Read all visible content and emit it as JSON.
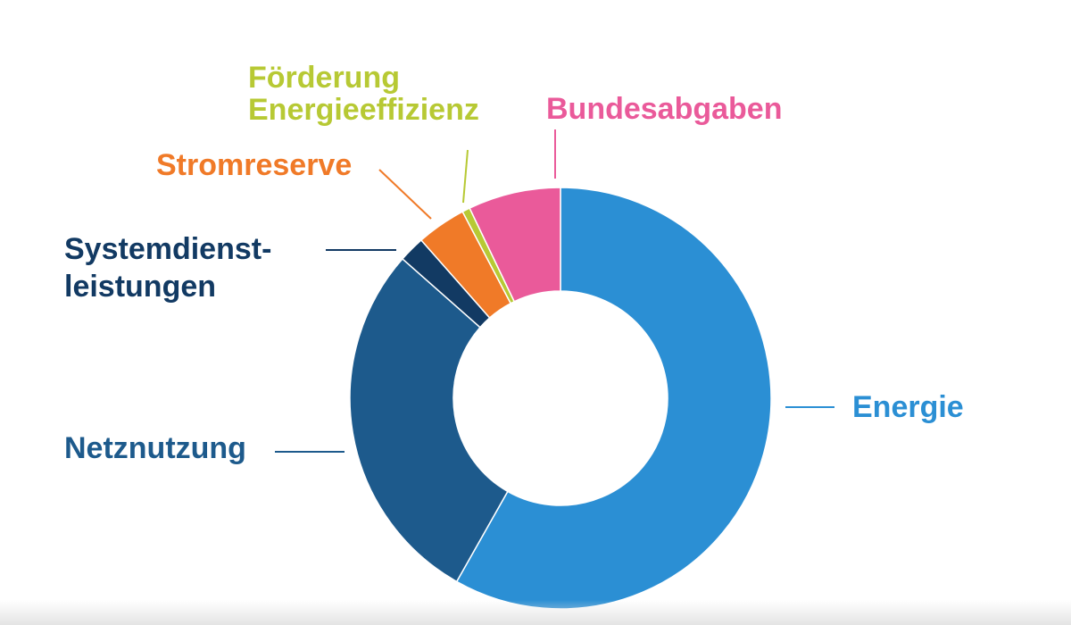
{
  "chart_data": {
    "type": "pie",
    "donut": true,
    "title": "",
    "slices": [
      {
        "label": "Energie",
        "value": 58.2,
        "color": "#2b8fd4"
      },
      {
        "label": "Netznutzung",
        "value": 28.3,
        "color": "#1d5a8c"
      },
      {
        "label": "Systemdienst-leistungen",
        "lines": [
          "Systemdienst-",
          "leistungen"
        ],
        "value": 2.0,
        "color": "#123a63"
      },
      {
        "label": "Stromreserve",
        "value": 3.8,
        "color": "#f07a28"
      },
      {
        "label": "Förderung Energieeffizienz",
        "lines": [
          "Förderung",
          "Energieeffizienz"
        ],
        "value": 0.6,
        "color": "#b7c934"
      },
      {
        "label": "Bundesabgaben",
        "value": 7.1,
        "color": "#ea5a9a"
      }
    ]
  }
}
